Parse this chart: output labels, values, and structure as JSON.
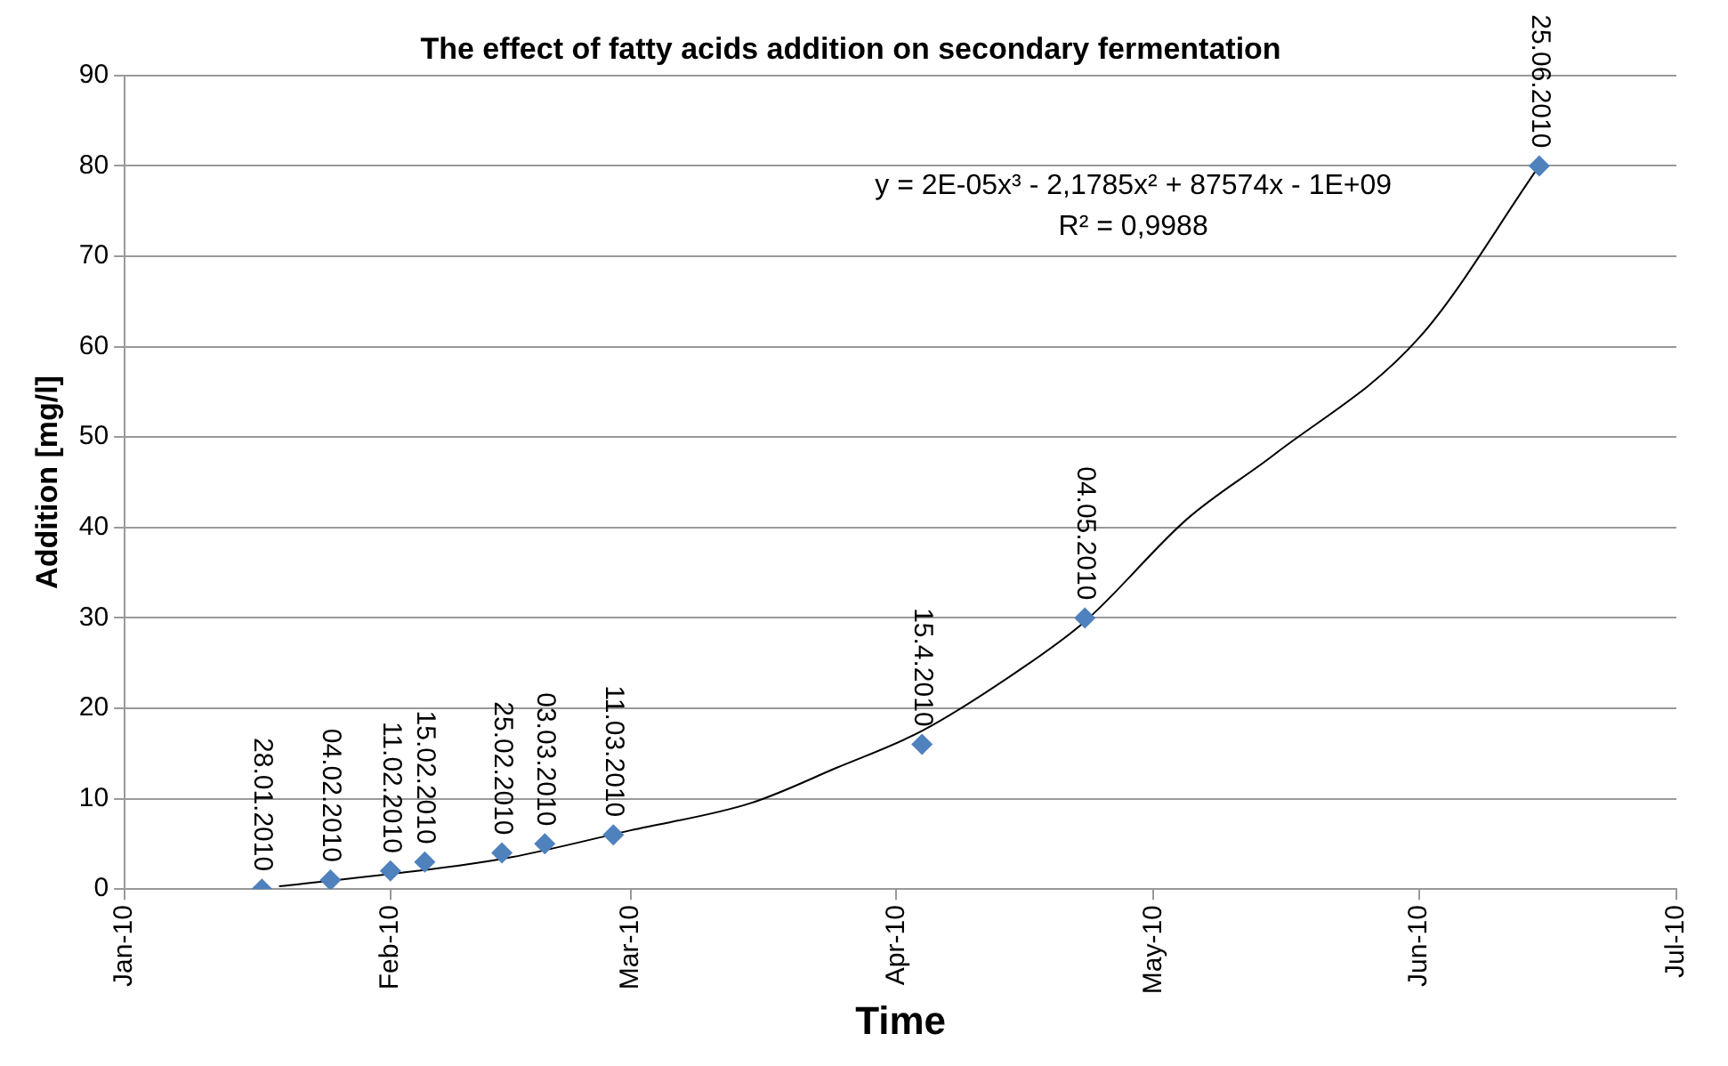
{
  "chart_data": {
    "type": "scatter",
    "title": "The effect of fatty acids addition on secondary fermentation",
    "xlabel": "Time",
    "ylabel": "Addition [mg/l]",
    "series": [
      {
        "color": "#4f81bd",
        "marker": "diamond",
        "x": [
          "2010-01-17",
          "2010-01-25",
          "2010-02-01",
          "2010-02-05",
          "2010-02-14",
          "2010-02-19",
          "2010-02-27",
          "2010-04-04",
          "2010-04-23",
          "2010-06-15"
        ],
        "values": [
          0,
          1,
          2,
          3,
          4,
          5,
          6,
          16,
          30,
          80
        ],
        "value_labels": [
          "28.01.2010",
          "04.02.2010",
          "11.02.2010",
          "15.02.2010",
          "25.02.2010",
          "03.03.2010",
          "11.03.2010",
          "15.4.2010",
          "04.05.2010",
          "25.06.2010"
        ]
      },
      {
        "type": "line",
        "color": "#000000",
        "marker": "none",
        "line_style": "solid",
        "x": [
          "2010-01-19",
          "2010-02-09",
          "2010-02-15",
          "2010-03-01",
          "2010-03-15",
          "2010-03-25",
          "2010-04-04",
          "2010-04-15",
          "2010-04-23",
          "2010-05-05",
          "2010-05-15",
          "2010-06-01",
          "2010-06-15"
        ],
        "values": [
          0.3,
          2.6,
          3.5,
          6.5,
          9.5,
          13.4,
          17.5,
          24,
          29.6,
          41,
          48,
          61,
          80
        ]
      }
    ],
    "xlim": [
      "2010-01-01",
      "2010-07-01"
    ],
    "xticks": [
      {
        "value": "2010-01-01",
        "label": "Jan-10"
      },
      {
        "value": "2010-02-01",
        "label": "Feb-10"
      },
      {
        "value": "2010-03-01",
        "label": "Mar-10"
      },
      {
        "value": "2010-04-01",
        "label": "Apr-10"
      },
      {
        "value": "2010-05-01",
        "label": "May-10"
      },
      {
        "value": "2010-06-01",
        "label": "Jun-10"
      },
      {
        "value": "2010-07-01",
        "label": "Jul-10"
      }
    ],
    "ylim": [
      0,
      90
    ],
    "yticks": [
      0,
      10,
      20,
      30,
      40,
      50,
      60,
      70,
      80,
      90
    ],
    "grid": "y",
    "legend": false,
    "annotations": [
      "y = 2E-05x³ - 2,1785x² + 87574x - 1E+09",
      "R² = 0,9988"
    ]
  }
}
